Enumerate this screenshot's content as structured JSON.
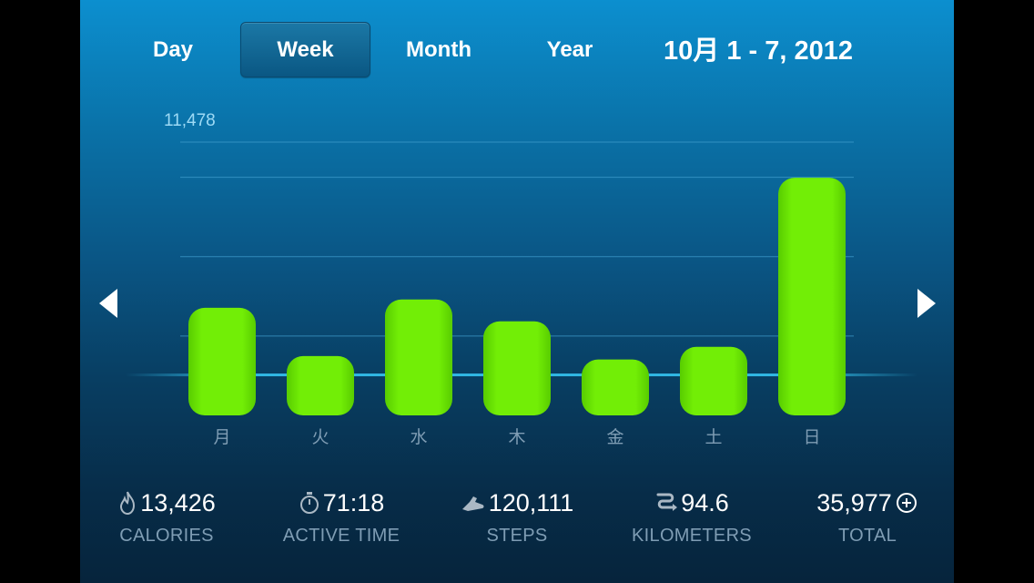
{
  "tabs": {
    "day": "Day",
    "week": "Week",
    "month": "Month",
    "year": "Year",
    "active": "week"
  },
  "date_range": "10月 1 - 7, 2012",
  "chart_data": {
    "type": "bar",
    "categories": [
      "月",
      "火",
      "水",
      "木",
      "金",
      "土",
      "日"
    ],
    "values": [
      4520,
      2490,
      4870,
      3950,
      2350,
      2880,
      9980
    ],
    "max_label": "11,478",
    "ylim": [
      0,
      11478
    ],
    "gridlines": [
      10000,
      6667,
      3333
    ],
    "goal_line": 1700,
    "bar_color": "#6fe800"
  },
  "stats": {
    "calories": {
      "value": "13,426",
      "label": "CALORIES",
      "icon": "flame-icon"
    },
    "active_time": {
      "value": "71:18",
      "label": "ACTIVE TIME",
      "icon": "stopwatch-icon"
    },
    "steps": {
      "value": "120,111",
      "label": "STEPS",
      "icon": "shoe-icon"
    },
    "kilometers": {
      "value": "94.6",
      "label": "KILOMETERS",
      "icon": "route-icon"
    },
    "total": {
      "value": "35,977",
      "label": "TOTAL",
      "icon": "fuel-icon"
    }
  },
  "colors": {
    "accent": "#6fe800",
    "label_dim": "#7f9db4",
    "max_label": "#9ddaf5"
  }
}
